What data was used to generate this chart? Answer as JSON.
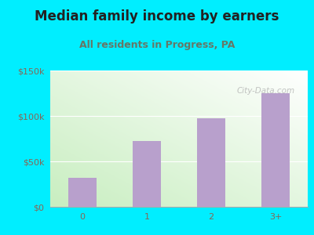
{
  "title": "Median family income by earners",
  "subtitle": "All residents in Progress, PA",
  "categories": [
    "0",
    "1",
    "2",
    "3+"
  ],
  "values": [
    32000,
    72000,
    97000,
    125000
  ],
  "bar_color": "#b8a0cc",
  "background_outer": "#00eeff",
  "background_inner_left": "#c8eec0",
  "background_inner_right": "#f0f8ff",
  "title_color": "#222222",
  "subtitle_color": "#667766",
  "tick_label_color": "#886655",
  "ylim": [
    0,
    150000
  ],
  "yticks": [
    0,
    50000,
    100000,
    150000
  ],
  "ytick_labels": [
    "$0",
    "$50k",
    "$100k",
    "$150k"
  ],
  "title_fontsize": 12,
  "subtitle_fontsize": 9,
  "tick_fontsize": 8,
  "watermark": "City-Data.com"
}
